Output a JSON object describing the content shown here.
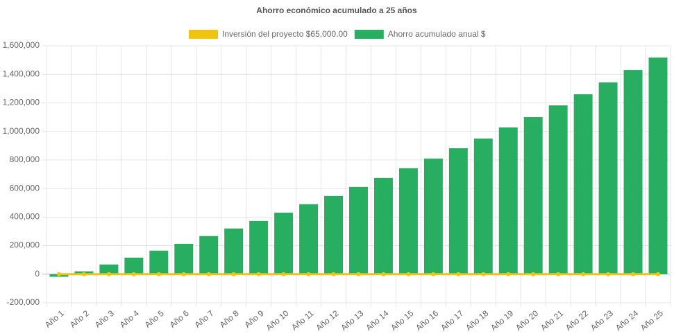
{
  "chart_data": {
    "type": "bar",
    "title": "Ahorro económico acumulado a 25 años",
    "categories": [
      "Año 1",
      "Año 2",
      "Año 3",
      "Año 4",
      "Año 5",
      "Año 6",
      "Año 7",
      "Año 8",
      "Año 9",
      "Año 10",
      "Año 11",
      "Año 12",
      "Año 13",
      "Año 14",
      "Año 15",
      "Año 16",
      "Año 17",
      "Año 18",
      "Año 19",
      "Año 20",
      "Año 21",
      "Año 22",
      "Año 23",
      "Año 24",
      "Año 25"
    ],
    "series": [
      {
        "name": "Inversión del proyecto $65,000.00",
        "type": "line",
        "color": "#f1c40f",
        "values": [
          0,
          0,
          0,
          0,
          0,
          0,
          0,
          0,
          0,
          0,
          0,
          0,
          0,
          0,
          0,
          0,
          0,
          0,
          0,
          0,
          0,
          0,
          0,
          0,
          0
        ]
      },
      {
        "name": "Ahorro acumulado anual $",
        "type": "bar",
        "color": "#27ae60",
        "values": [
          -18000,
          20000,
          68000,
          116000,
          165000,
          213000,
          267000,
          320000,
          373000,
          431000,
          490000,
          548000,
          611000,
          674000,
          742000,
          810000,
          882000,
          950000,
          1028000,
          1100000,
          1182000,
          1260000,
          1343000,
          1430000,
          1517000
        ]
      }
    ],
    "ylim": [
      -200000,
      1600000
    ],
    "yticks": [
      {
        "value": -200000,
        "label": "-200,000"
      },
      0,
      {
        "value": 200000,
        "label": "200,000"
      },
      {
        "value": 400000,
        "label": "400,000"
      },
      {
        "value": 600000,
        "label": "600,000"
      },
      {
        "value": 800000,
        "label": "800,000"
      },
      {
        "value": 1000000,
        "label": "1,000,000"
      },
      {
        "value": 1200000,
        "label": "1,200,000"
      },
      {
        "value": 1400000,
        "label": "1,400,000"
      },
      {
        "value": 1600000,
        "label": "1,600,000"
      }
    ],
    "grid": true,
    "legend": "top"
  }
}
